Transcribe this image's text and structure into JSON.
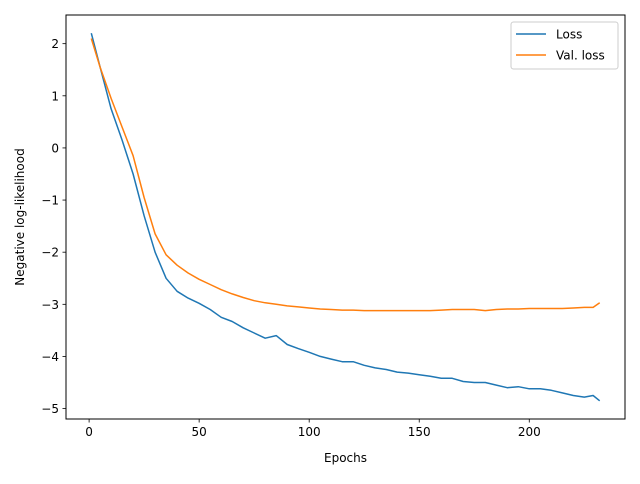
{
  "chart_data": {
    "type": "line",
    "title": "",
    "xlabel": "Epochs",
    "ylabel": "Negative log-likelihood",
    "xlim": [
      -10.5,
      243.5
    ],
    "ylim": [
      -5.2,
      2.55
    ],
    "xticks": [
      0,
      50,
      100,
      150,
      200
    ],
    "yticks": [
      -5,
      -4,
      -3,
      -2,
      -1,
      0,
      1,
      2
    ],
    "grid": false,
    "legend": "top-right",
    "series": [
      {
        "name": "Loss",
        "color": "#1f77b4",
        "x": [
          1,
          5,
          10,
          15,
          20,
          25,
          30,
          35,
          40,
          45,
          50,
          55,
          60,
          65,
          70,
          75,
          80,
          85,
          90,
          95,
          100,
          105,
          110,
          115,
          120,
          125,
          130,
          135,
          140,
          145,
          150,
          155,
          160,
          165,
          170,
          175,
          180,
          185,
          190,
          195,
          200,
          205,
          210,
          215,
          220,
          225,
          229,
          232
        ],
        "y": [
          2.2,
          1.55,
          0.75,
          0.15,
          -0.5,
          -1.3,
          -2.0,
          -2.5,
          -2.75,
          -2.88,
          -2.98,
          -3.1,
          -3.25,
          -3.33,
          -3.45,
          -3.55,
          -3.65,
          -3.6,
          -3.77,
          -3.85,
          -3.92,
          -4.0,
          -4.05,
          -4.1,
          -4.1,
          -4.17,
          -4.22,
          -4.25,
          -4.3,
          -4.32,
          -4.35,
          -4.38,
          -4.42,
          -4.42,
          -4.48,
          -4.5,
          -4.5,
          -4.55,
          -4.6,
          -4.58,
          -4.62,
          -4.62,
          -4.65,
          -4.7,
          -4.75,
          -4.78,
          -4.75,
          -4.85
        ]
      },
      {
        "name": "Val. loss",
        "color": "#ff7f0e",
        "x": [
          1,
          5,
          10,
          15,
          20,
          25,
          30,
          35,
          40,
          45,
          50,
          55,
          60,
          65,
          70,
          75,
          80,
          85,
          90,
          95,
          100,
          105,
          110,
          115,
          120,
          125,
          130,
          135,
          140,
          145,
          150,
          155,
          160,
          165,
          170,
          175,
          180,
          185,
          190,
          195,
          200,
          205,
          210,
          215,
          220,
          225,
          229,
          232
        ],
        "y": [
          2.1,
          1.55,
          0.95,
          0.4,
          -0.15,
          -0.95,
          -1.65,
          -2.05,
          -2.25,
          -2.4,
          -2.52,
          -2.62,
          -2.72,
          -2.8,
          -2.87,
          -2.93,
          -2.97,
          -3.0,
          -3.03,
          -3.05,
          -3.07,
          -3.09,
          -3.1,
          -3.11,
          -3.11,
          -3.12,
          -3.12,
          -3.12,
          -3.12,
          -3.12,
          -3.12,
          -3.12,
          -3.11,
          -3.1,
          -3.1,
          -3.1,
          -3.12,
          -3.1,
          -3.09,
          -3.09,
          -3.08,
          -3.08,
          -3.08,
          -3.08,
          -3.07,
          -3.06,
          -3.06,
          -2.97
        ]
      }
    ]
  }
}
